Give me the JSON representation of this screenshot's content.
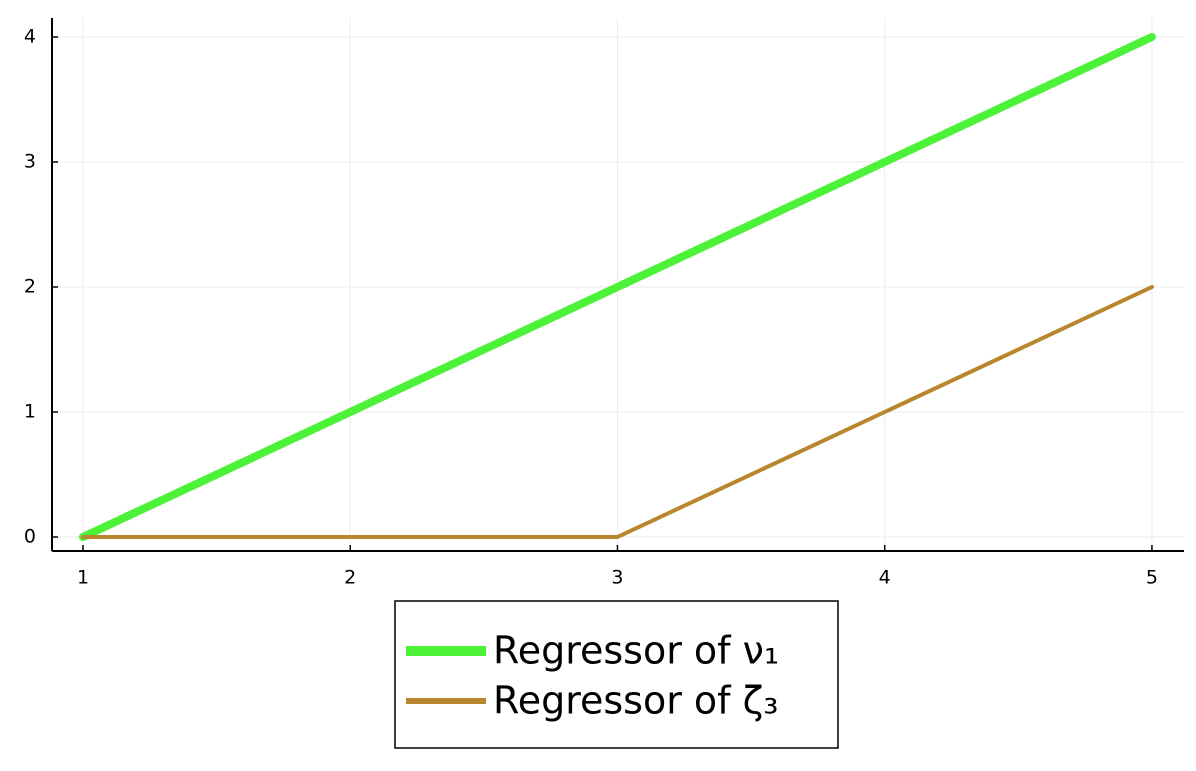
{
  "chart_data": {
    "type": "line",
    "x": [
      1,
      2,
      3,
      4,
      5
    ],
    "series": [
      {
        "name": "Regressor of ν₁",
        "color": "#4cf237",
        "values": [
          0,
          1,
          2,
          3,
          4
        ]
      },
      {
        "name": "Regressor of ζ₃",
        "color": "#b8862c",
        "values": [
          0,
          0,
          0,
          1,
          2
        ]
      }
    ],
    "xlim": [
      0.884,
      5.12
    ],
    "xticks": [
      1,
      2,
      3,
      4,
      5
    ],
    "ylim": [
      -0.112,
      4.152
    ],
    "yticks": [
      0,
      1,
      2,
      3,
      4
    ],
    "grid": true,
    "legend": "bottom"
  }
}
